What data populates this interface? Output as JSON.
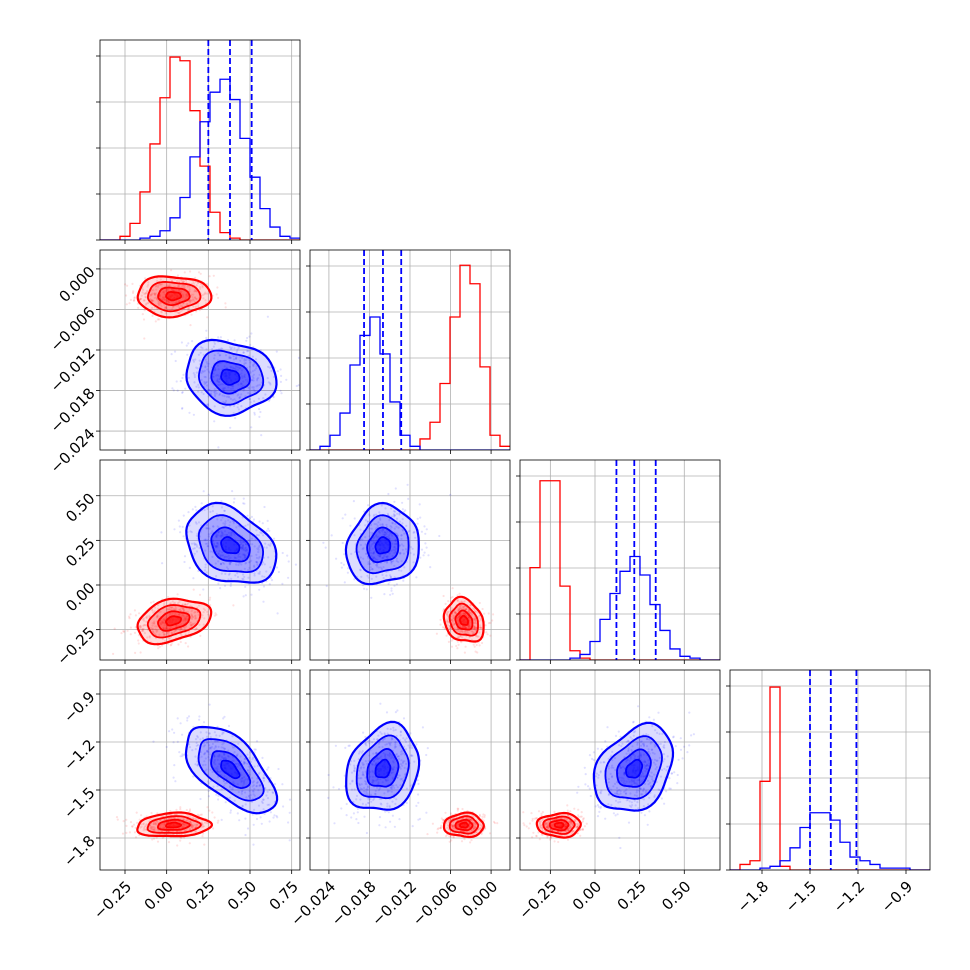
{
  "chart_data": {
    "type": "corner",
    "title": "",
    "grid": true,
    "colors": {
      "series_a": "#ff0000",
      "series_b": "#0000ff"
    },
    "parameters": [
      {
        "ticks": [
          -0.25,
          0.0,
          0.25,
          0.5,
          0.75
        ],
        "tick_labels": [
          "−0.25",
          "0.00",
          "0.25",
          "0.50",
          "0.75"
        ],
        "range": [
          -0.4,
          0.8
        ]
      },
      {
        "ticks": [
          -0.024,
          -0.018,
          -0.012,
          -0.006,
          0.0
        ],
        "tick_labels": [
          "−0.024",
          "−0.018",
          "−0.012",
          "−0.006",
          "0.000"
        ],
        "range": [
          -0.0268,
          0.0028
        ]
      },
      {
        "ticks": [
          -0.25,
          0.0,
          0.25,
          0.5
        ],
        "tick_labels": [
          "−0.25",
          "0.00",
          "0.25",
          "0.50"
        ],
        "range": [
          -0.42,
          0.7
        ]
      },
      {
        "ticks": [
          -1.8,
          -1.5,
          -1.2,
          -0.9
        ],
        "tick_labels": [
          "−1.8",
          "−1.5",
          "−1.2",
          "−0.9"
        ],
        "range": [
          -2.0,
          -0.75
        ]
      }
    ],
    "series": [
      {
        "color": "#ff0000",
        "mean": [
          0.04,
          -0.004,
          -0.2,
          -1.72
        ],
        "sd": [
          0.09,
          0.0012,
          0.05,
          0.03
        ],
        "corr": {
          "0-1": 0.0,
          "0-2": 0.3,
          "0-3": 0.1,
          "1-2": -0.2,
          "1-3": 0.0,
          "2-3": 0.0
        }
      },
      {
        "color": "#0000ff",
        "mean": [
          0.38,
          -0.016,
          0.22,
          -1.37
        ],
        "sd": [
          0.11,
          0.0022,
          0.09,
          0.11
        ],
        "corr": {
          "0-1": -0.1,
          "0-2": -0.3,
          "0-3": -0.6,
          "1-2": 0.1,
          "1-3": 0.2,
          "2-3": 0.3
        }
      }
    ],
    "quantile_lines": [
      [
        0.25,
        0.38,
        0.51
      ],
      [
        -0.0188,
        -0.016,
        -0.0133
      ],
      [
        0.12,
        0.22,
        0.34
      ],
      [
        -1.5,
        -1.37,
        -1.21
      ]
    ],
    "histograms": [
      {
        "edges_range": [
          -0.4,
          0.8
        ],
        "red": [
          0,
          0,
          0.02,
          0.09,
          0.26,
          0.52,
          0.77,
          0.99,
          0.97,
          0.7,
          0.4,
          0.15,
          0.04,
          0.01,
          0,
          0,
          0,
          0,
          0,
          0
        ],
        "blue": [
          0,
          0,
          0,
          0,
          0.01,
          0.02,
          0.05,
          0.12,
          0.23,
          0.45,
          0.64,
          0.8,
          0.87,
          0.76,
          0.55,
          0.34,
          0.17,
          0.07,
          0.02,
          0.01
        ]
      },
      {
        "edges_range": [
          -0.0268,
          0.0028
        ],
        "red": [
          0,
          0,
          0,
          0,
          0,
          0,
          0,
          0,
          0,
          0,
          0,
          0.06,
          0.15,
          0.36,
          0.72,
          1.0,
          0.9,
          0.45,
          0.08,
          0.02
        ],
        "blue": [
          0,
          0.02,
          0.08,
          0.2,
          0.46,
          0.62,
          0.72,
          0.52,
          0.26,
          0.08,
          0.02,
          0,
          0,
          0,
          0,
          0,
          0,
          0,
          0,
          0
        ]
      },
      {
        "edges_range": [
          -0.42,
          0.7
        ],
        "red": [
          0,
          0.5,
          0.97,
          0.97,
          0.4,
          0.05,
          0.01,
          0,
          0,
          0,
          0,
          0,
          0,
          0,
          0,
          0,
          0,
          0,
          0,
          0
        ],
        "blue": [
          0,
          0,
          0,
          0,
          0,
          0.01,
          0.03,
          0.1,
          0.22,
          0.36,
          0.48,
          0.56,
          0.46,
          0.3,
          0.16,
          0.06,
          0.02,
          0.01,
          0,
          0
        ],
        "note": ""
      },
      {
        "edges_range": [
          -2.0,
          -0.75
        ],
        "red": [
          0,
          0.03,
          0.05,
          0.48,
          0.99,
          0.02,
          0,
          0,
          0,
          0,
          0,
          0,
          0,
          0,
          0,
          0,
          0,
          0,
          0,
          0
        ],
        "blue": [
          0,
          0,
          0,
          0.01,
          0.02,
          0.05,
          0.12,
          0.23,
          0.31,
          0.31,
          0.27,
          0.15,
          0.07,
          0.05,
          0.03,
          0.01,
          0.01,
          0.01,
          0,
          0
        ]
      }
    ]
  }
}
